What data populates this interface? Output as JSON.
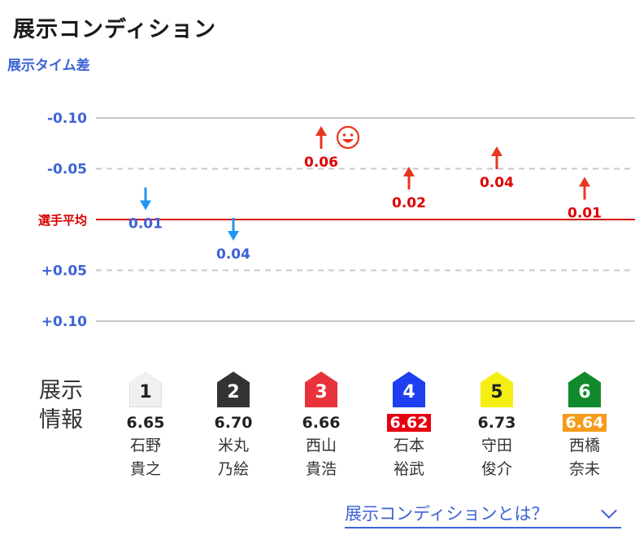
{
  "title": "展示コンディション",
  "y_axis_label": "展示タイム差",
  "average_label": "選手平均",
  "colors": {
    "better": "#e8371f",
    "better_value": "#e00000",
    "worse": "#2196f3",
    "worse_value": "#3d63d6",
    "average_line": "#d40000"
  },
  "chart_data": {
    "type": "scatter",
    "ylabel": "展示タイム差",
    "ylim": [
      -0.1,
      0.1
    ],
    "ytick_labels": [
      "-0.10",
      "-0.05",
      "選手平均",
      "+0.05",
      "+0.10"
    ],
    "ytick_values": [
      -0.1,
      -0.05,
      0,
      0.05,
      0.1
    ],
    "categories": [
      "1",
      "2",
      "3",
      "4",
      "5",
      "6"
    ],
    "points": [
      {
        "lane": "1",
        "value": 0.01,
        "label": "0.01",
        "direction": "down"
      },
      {
        "lane": "2",
        "value": 0.04,
        "label": "0.04",
        "direction": "down"
      },
      {
        "lane": "3",
        "value": -0.06,
        "label": "0.06",
        "direction": "up",
        "smiley": true
      },
      {
        "lane": "4",
        "value": -0.02,
        "label": "0.02",
        "direction": "up"
      },
      {
        "lane": "5",
        "value": -0.04,
        "label": "0.04",
        "direction": "up"
      },
      {
        "lane": "6",
        "value": -0.01,
        "label": "0.01",
        "direction": "up"
      }
    ]
  },
  "info_title": "展示情報",
  "lanes": [
    {
      "number": "1",
      "time": "6.65",
      "name1": "石野",
      "name2": "貴之",
      "bg": "#f0f0f0",
      "fg": "#222222",
      "highlight": ""
    },
    {
      "number": "2",
      "time": "6.70",
      "name1": "米丸",
      "name2": "乃絵",
      "bg": "#333333",
      "fg": "#ffffff",
      "highlight": ""
    },
    {
      "number": "3",
      "time": "6.66",
      "name1": "西山",
      "name2": "貴浩",
      "bg": "#e8323c",
      "fg": "#ffffff",
      "highlight": ""
    },
    {
      "number": "4",
      "time": "6.62",
      "name1": "石本",
      "name2": "裕武",
      "bg": "#1d3ff0",
      "fg": "#ffffff",
      "highlight": "red"
    },
    {
      "number": "5",
      "time": "6.73",
      "name1": "守田",
      "name2": "俊介",
      "bg": "#f5ee13",
      "fg": "#222222",
      "highlight": ""
    },
    {
      "number": "6",
      "time": "6.64",
      "name1": "西橋",
      "name2": "奈未",
      "bg": "#118a2c",
      "fg": "#ffffff",
      "highlight": "orange"
    }
  ],
  "link_label": "展示コンディションとは？"
}
